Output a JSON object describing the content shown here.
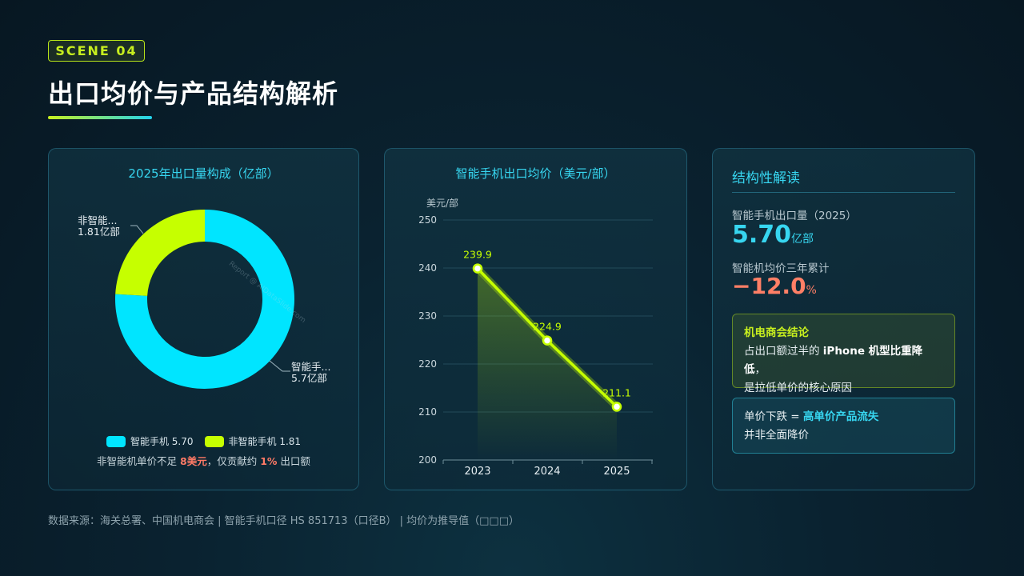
{
  "header": {
    "scene": "SCENE 04",
    "title": "出口均价与产品结构解析"
  },
  "donut": {
    "title": "2025年出口量构成（亿部）",
    "callout_smart_name": "智能手...",
    "callout_smart_value": "5.7亿部",
    "callout_nonsmart_name": "非智能...",
    "callout_nonsmart_value": "1.81亿部",
    "legend": [
      {
        "label": "智能手机 5.70",
        "color": "#00e5ff"
      },
      {
        "label": "非智能手机 1.81",
        "color": "#c6ff00"
      }
    ],
    "note_pre": "非智能机单价不足 ",
    "note_hl1": "8美元",
    "note_mid": "，仅贡献约 ",
    "note_hl2": "1%",
    "note_post": " 出口额",
    "watermark": "Report @ AIDataSlide.com"
  },
  "line": {
    "title": "智能手机出口均价（美元/部）"
  },
  "chart_data": [
    {
      "type": "pie",
      "title": "2025年出口量构成（亿部）",
      "categories": [
        "智能手机",
        "非智能手机"
      ],
      "values": [
        5.7,
        1.81
      ],
      "unit": "亿部",
      "colors": [
        "#00e5ff",
        "#c6ff00"
      ],
      "legend": "bottom"
    },
    {
      "type": "line",
      "title": "智能手机出口均价（美元/部）",
      "ylabel": "美元/部",
      "x": [
        "2023",
        "2024",
        "2025"
      ],
      "series": [
        {
          "values": [
            239.9,
            224.9,
            211.1
          ],
          "color": "#c6ff00"
        }
      ],
      "ylim": [
        200,
        250
      ],
      "yticks": [
        200,
        210,
        220,
        230,
        240,
        250
      ],
      "grid": true
    }
  ],
  "interpretation": {
    "title": "结构性解读",
    "metric1_label": "智能手机出口量（2025）",
    "metric1_value": "5.70",
    "metric1_unit": "亿部",
    "metric2_label": "智能机均价三年累计",
    "metric2_value": "−12.0",
    "metric2_unit": "%",
    "box1_head": "机电商会结论",
    "box1_line1_pre": "占出口额过半的 ",
    "box1_line1_bold": "iPhone 机型比重降低",
    "box1_line1_post": "，",
    "box1_line2": "是拉低单价的核心原因",
    "box2_line1_pre": "单价下跌 = ",
    "box2_line1_hl": "高单价产品流失",
    "box2_line2": "并非全面降价"
  },
  "footer": "数据来源：海关总署、中国机电商会 | 智能手机口径 HS 851713（口径B） | 均价为推导值（□□□）"
}
